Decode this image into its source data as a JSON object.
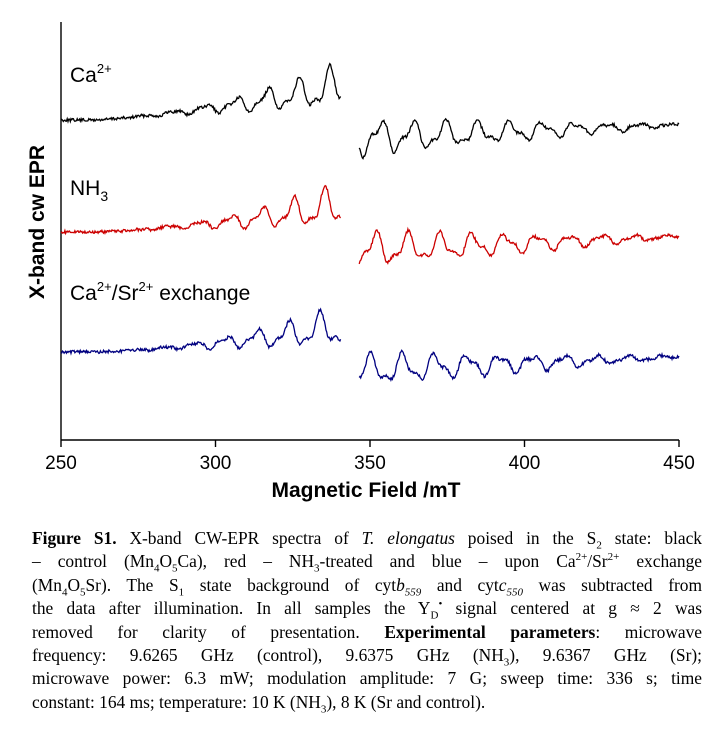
{
  "chart_data": {
    "type": "line",
    "title": "",
    "xlabel": "Magnetic Field /mT",
    "ylabel": "X-band cw EPR",
    "xlim": [
      250,
      450
    ],
    "xticks": [
      250,
      300,
      350,
      400,
      450
    ],
    "xtick_labels": [
      "250",
      "300",
      "350",
      "400",
      "450"
    ],
    "yticks": false,
    "grid": false,
    "legend": "none (inline series labels at upper-left of each trace)",
    "gap_mT": [
      340.5,
      346.5
    ],
    "series": [
      {
        "name": "Ca2+ (control)",
        "label_text": "Ca",
        "label_sup": "2+",
        "color": "#000000",
        "baseline": 1.0,
        "description": "multiline EPR signal, ~20 hyperfine lines, amplitude ~0.35 on each side of gap"
      },
      {
        "name": "NH3-treated",
        "label_text": "NH",
        "label_sub": "3",
        "color": "#cc0000",
        "baseline": 0.0,
        "description": "modified multiline signal, broader envelope"
      },
      {
        "name": "Ca2+/Sr2+ exchange",
        "label_text": "Ca",
        "label_sup1": "2+",
        "label_mid": "/Sr",
        "label_sup2": "2+",
        "label_tail": " exchange",
        "color": "#000080",
        "baseline": -1.0,
        "description": "Sr-substituted multiline signal"
      }
    ]
  },
  "caption": {
    "figure_label": "Figure S1.",
    "t1": " X-band CW-EPR spectra of ",
    "species": "T. elongatus",
    "t2": " poised in the S",
    "t2_sub": "2",
    "t3": " state: black",
    "l2a": "– control (Mn",
    "l2_sub1": "4",
    "l2b": "O",
    "l2_sub2": "5",
    "l2c": "Ca), red – NH",
    "l2_sub3": "3",
    "l2d": "-treated and blue – upon Ca",
    "l2_sup1": "2+",
    "l2e": "/Sr",
    "l2_sup2": "2+",
    "l2f": " exchange",
    "l3a": "(Mn",
    "l3_sub1": "4",
    "l3b": "O",
    "l3_sub2": "5",
    "l3c": "Sr). The S",
    "l3_sub3": "1",
    "l3d": " state background of cyt",
    "l3_it1": "b",
    "l3_it1_sub": "559",
    "l3e": " and cyt",
    "l3_it2": "c",
    "l3_it2_sub": "550",
    "l3f": " was subtracted from",
    "l4a": "the data after illumination. In all samples the Y",
    "l4_sub": "D",
    "l4_sup": "•",
    "l4b": " signal centered at g ≈ 2 was",
    "l5a": "removed for clarity of presentation. ",
    "l5_bold": "Experimental parameters",
    "l5b": ": microwave",
    "l6a": "frequency:  9.6265 GHz (control), 9.6375 GHz (NH",
    "l6_sub": "3",
    "l6b": "), 9.6367 GHz (Sr);",
    "l7": "microwave power: 6.3 mW; modulation amplitude: 7 G; sweep time: 336 s; time",
    "l8a": "constant: 164 ms; temperature: 10 K (NH",
    "l8_sub": "3",
    "l8b": "), 8 K (Sr and control)."
  }
}
